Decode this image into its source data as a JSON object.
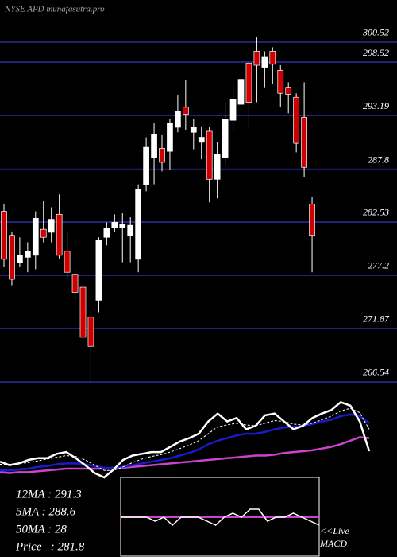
{
  "chart_data": {
    "type": "candlestick",
    "title": "NYSE APD munafasutra.pro",
    "ylim": [
      264.5,
      302.5
    ],
    "yticks": [
      300.52,
      298.52,
      293.19,
      287.8,
      282.53,
      277.2,
      271.87,
      266.54
    ],
    "grid": true,
    "up_color": "#ffffff",
    "down_color": "#cc0000",
    "open": [
      283.6,
      281.2,
      278.5,
      279.0,
      279.2,
      281.8,
      281.5,
      283.3,
      279.6,
      277.3,
      276.0,
      273.0,
      274.7,
      281.0,
      282.0,
      282.0,
      281.2,
      278.8,
      286.3,
      289.0,
      289.9,
      289.6,
      292.0,
      294.0,
      291.5,
      290.5,
      291.6,
      286.8,
      289.0,
      292.7,
      294.3,
      298.4,
      299.6,
      298.0,
      299.6,
      297.7,
      296.0,
      295.0,
      293.0,
      284.3
    ],
    "high": [
      284.3,
      281.5,
      281.0,
      280.5,
      283.6,
      284.6,
      284.0,
      285.3,
      281.6,
      278.0,
      276.3,
      273.6,
      281.0,
      282.5,
      283.3,
      283.4,
      283.0,
      286.3,
      291.0,
      292.4,
      291.2,
      292.8,
      295.2,
      296.7,
      292.8,
      292.1,
      292.0,
      290.5,
      294.5,
      296.5,
      297.5,
      298.6,
      301.0,
      299.6,
      300.0,
      298.2,
      296.5,
      295.4,
      296.5,
      285.0
    ],
    "low": [
      278.0,
      276.2,
      278.0,
      277.5,
      277.8,
      280.5,
      280.5,
      278.8,
      276.8,
      274.8,
      270.4,
      266.5,
      273.5,
      280.2,
      281.5,
      278.5,
      278.5,
      277.5,
      285.6,
      286.3,
      287.6,
      287.7,
      291.5,
      291.7,
      289.8,
      288.8,
      284.5,
      284.9,
      288.3,
      291.6,
      293.5,
      292.1,
      294.5,
      296.0,
      296.3,
      294.0,
      293.4,
      289.5,
      287.0,
      277.5
    ],
    "close": [
      278.8,
      276.8,
      279.2,
      279.6,
      282.9,
      281.0,
      282.8,
      279.2,
      277.5,
      275.5,
      271.0,
      270.1,
      280.7,
      281.9,
      282.5,
      282.3,
      282.2,
      285.8,
      290.0,
      291.3,
      288.5,
      292.4,
      293.6,
      293.3,
      292.0,
      291.0,
      286.8,
      289.3,
      292.8,
      294.8,
      296.8,
      294.5,
      298.2,
      299.0,
      298.3,
      295.4,
      295.3,
      290.4,
      288.0,
      281.2
    ],
    "indicators": {
      "ylim": [
        0,
        100
      ],
      "series": [
        {
          "color": "#cc44cc",
          "values": [
            6,
            5,
            6,
            6,
            7,
            8,
            9,
            10,
            10,
            10,
            10,
            10,
            11,
            11,
            12,
            13,
            14,
            15,
            16,
            17,
            18,
            19,
            20,
            21,
            22,
            23,
            24,
            25,
            25,
            26,
            28,
            29,
            30,
            31,
            33,
            35,
            38,
            42,
            46,
            45
          ]
        },
        {
          "color": "#1a1acc",
          "values": [
            8,
            8,
            9,
            10,
            12,
            13,
            15,
            16,
            16,
            15,
            13,
            11,
            11,
            12,
            14,
            16,
            18,
            20,
            22,
            25,
            28,
            32,
            38,
            42,
            45,
            48,
            50,
            50,
            52,
            55,
            57,
            58,
            59,
            61,
            64,
            66,
            70,
            72,
            70,
            62
          ]
        },
        {
          "color": "#ffffff",
          "dashed": true,
          "values": [
            15,
            15,
            16,
            17,
            19,
            21,
            23,
            25,
            24,
            20,
            14,
            8,
            8,
            12,
            17,
            21,
            24,
            26,
            29,
            33,
            37,
            42,
            50,
            58,
            60,
            62,
            60,
            59,
            62,
            65,
            64,
            61,
            60,
            62,
            66,
            70,
            76,
            79,
            74,
            55
          ]
        },
        {
          "color": "#ffffff",
          "values": [
            18,
            14,
            16,
            20,
            22,
            22,
            27,
            29,
            22,
            14,
            5,
            0,
            9,
            20,
            25,
            27,
            29,
            29,
            35,
            41,
            45,
            50,
            64,
            73,
            64,
            68,
            55,
            59,
            71,
            73,
            64,
            55,
            59,
            68,
            73,
            77,
            86,
            82,
            64,
            30
          ]
        }
      ]
    },
    "macd": {
      "ylim": [
        -10,
        10
      ],
      "signal": {
        "color": "#cc44cc",
        "values": [
          0,
          0
        ]
      },
      "line": {
        "color": "#ffffff",
        "values": [
          0,
          0,
          0,
          0,
          -1,
          0,
          -2,
          0,
          0,
          0,
          -1,
          -2,
          0,
          1,
          0,
          2,
          2,
          -1,
          0,
          0,
          1,
          0,
          -1,
          -2
        ]
      },
      "label": [
        "<<Live",
        "MACD"
      ]
    },
    "stats": [
      "12MA : 291.3",
      "5MA : 288.6",
      "50MA : 28",
      "Price   : 281.8"
    ]
  }
}
